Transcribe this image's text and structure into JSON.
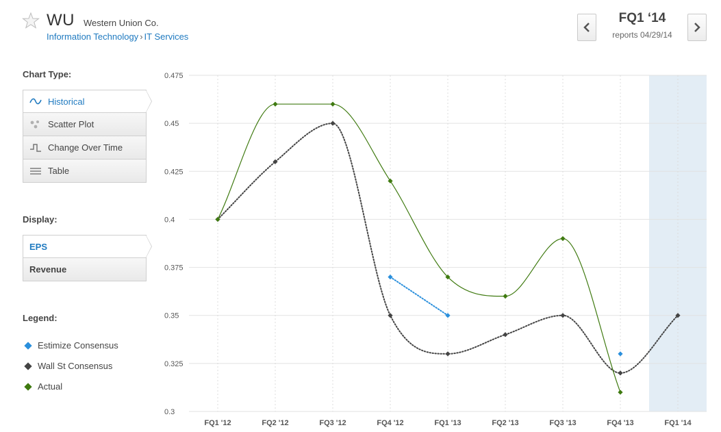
{
  "header": {
    "ticker": "WU",
    "company": "Western Union Co.",
    "breadcrumb": [
      "Information Technology",
      "IT Services"
    ],
    "quarter": "FQ1 ‘14",
    "report_date": "reports 04/29/14"
  },
  "sidebar": {
    "chart_type_title": "Chart Type:",
    "chart_types": [
      {
        "label": "Historical",
        "icon": "wave-icon",
        "active": true
      },
      {
        "label": "Scatter Plot",
        "icon": "scatter-icon",
        "active": false
      },
      {
        "label": "Change Over Time",
        "icon": "step-icon",
        "active": false
      },
      {
        "label": "Table",
        "icon": "table-icon",
        "active": false
      }
    ],
    "display_title": "Display:",
    "display_options": [
      {
        "label": "EPS",
        "active": true
      },
      {
        "label": "Revenue",
        "active": false
      }
    ],
    "legend_title": "Legend:",
    "legend": [
      {
        "label": "Estimize Consensus",
        "color": "#2a8fdc"
      },
      {
        "label": "Wall St Consensus",
        "color": "#444444"
      },
      {
        "label": "Actual",
        "color": "#3f7a10"
      }
    ]
  },
  "chart_data": {
    "type": "line",
    "categories": [
      "FQ1 '12",
      "FQ2 '12",
      "FQ3 '12",
      "FQ4 '12",
      "FQ1 '13",
      "FQ2 '13",
      "FQ3 '13",
      "FQ4 '13",
      "FQ1 '14"
    ],
    "ylim": [
      0.3,
      0.475
    ],
    "yticks": [
      "0.475",
      "0.45",
      "0.425",
      "0.4",
      "0.375",
      "0.35",
      "0.325",
      "0.3"
    ],
    "highlight_category": "FQ1 '14",
    "grid": true,
    "series": [
      {
        "name": "Actual",
        "color": "#3f7a10",
        "style": "solid",
        "values": [
          0.4,
          0.46,
          0.46,
          0.42,
          0.37,
          0.36,
          0.39,
          0.31,
          null
        ]
      },
      {
        "name": "Wall St Consensus",
        "color": "#444444",
        "style": "dotted",
        "values": [
          0.4,
          0.43,
          0.45,
          0.35,
          0.33,
          0.34,
          0.35,
          0.32,
          0.35
        ]
      },
      {
        "name": "Estimize Consensus",
        "color": "#2a8fdc",
        "style": "dotted",
        "values": [
          null,
          null,
          null,
          0.37,
          0.35,
          null,
          null,
          0.33,
          null
        ]
      }
    ]
  }
}
